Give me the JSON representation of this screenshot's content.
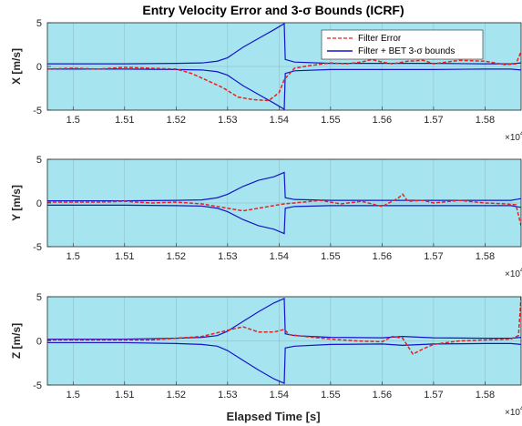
{
  "title": "Entry Velocity Error and 3-σ Bounds (ICRF)",
  "xlabel": "Elapsed Time [s]",
  "x_multiplier_base": "×10",
  "x_multiplier_exp": "4",
  "colors": {
    "background": "#a6e5f0",
    "error": "#e8201e",
    "bounds": "#1414c8",
    "grid": "#7a9aa2"
  },
  "legend": {
    "entries": [
      "Filter Error",
      "Filter + BET 3-σ bounds"
    ],
    "location": "top-right",
    "panel": 0
  },
  "chart_data": [
    {
      "type": "line",
      "ylabel": "X [m/s]",
      "xlim": [
        14950,
        15870
      ],
      "ylim": [
        -5,
        5
      ],
      "xticks": [
        15000,
        15100,
        15200,
        15300,
        15400,
        15500,
        15600,
        15700,
        15800
      ],
      "xtick_labels": [
        "1.5",
        "1.51",
        "1.52",
        "1.53",
        "1.54",
        "1.55",
        "1.56",
        "1.57",
        "1.58"
      ],
      "yticks": [
        -5,
        0,
        5
      ],
      "ytick_labels": [
        "-5",
        "0",
        "5"
      ],
      "grid": true,
      "series": [
        {
          "name": "Filter + BET 3-σ bounds",
          "style": "solid",
          "x": [
            14950,
            15100,
            15200,
            15250,
            15280,
            15300,
            15330,
            15360,
            15390,
            15410,
            15412,
            15430,
            15500,
            15600,
            15700,
            15800,
            15850,
            15870
          ],
          "y": [
            0.3,
            0.3,
            0.35,
            0.4,
            0.6,
            1.0,
            2.2,
            3.2,
            4.2,
            4.9,
            0.8,
            0.5,
            0.35,
            0.35,
            0.35,
            0.3,
            0.3,
            0.4
          ]
        },
        {
          "name": "",
          "style": "solid",
          "x": [
            14950,
            15100,
            15200,
            15250,
            15280,
            15300,
            15330,
            15360,
            15390,
            15410,
            15412,
            15430,
            15500,
            15600,
            15700,
            15800,
            15850,
            15870
          ],
          "y": [
            -0.3,
            -0.3,
            -0.35,
            -0.4,
            -0.6,
            -1.0,
            -2.2,
            -3.2,
            -4.2,
            -4.9,
            -0.8,
            -0.5,
            -0.35,
            -0.35,
            -0.35,
            -0.3,
            -0.3,
            -0.4
          ]
        },
        {
          "name": "Filter Error",
          "style": "dashed",
          "x": [
            14950,
            15000,
            15050,
            15100,
            15150,
            15200,
            15230,
            15260,
            15290,
            15320,
            15350,
            15380,
            15400,
            15410,
            15430,
            15460,
            15500,
            15530,
            15560,
            15580,
            15600,
            15620,
            15650,
            15680,
            15700,
            15750,
            15800,
            15840,
            15860,
            15870
          ],
          "y": [
            -0.3,
            -0.2,
            -0.3,
            -0.1,
            -0.2,
            -0.3,
            -0.8,
            -1.6,
            -2.4,
            -3.5,
            -3.8,
            -3.9,
            -3.0,
            -1.5,
            -0.2,
            0.1,
            0.4,
            0.3,
            0.5,
            0.8,
            0.5,
            0.3,
            0.6,
            0.7,
            0.3,
            0.7,
            0.6,
            0.2,
            0.3,
            1.7
          ]
        }
      ]
    },
    {
      "type": "line",
      "ylabel": "Y [m/s]",
      "xlim": [
        14950,
        15870
      ],
      "ylim": [
        -5,
        5
      ],
      "xticks": [
        15000,
        15100,
        15200,
        15300,
        15400,
        15500,
        15600,
        15700,
        15800
      ],
      "xtick_labels": [
        "1.5",
        "1.51",
        "1.52",
        "1.53",
        "1.54",
        "1.55",
        "1.56",
        "1.57",
        "1.58"
      ],
      "yticks": [
        -5,
        0,
        5
      ],
      "ytick_labels": [
        "-5",
        "0",
        "5"
      ],
      "grid": true,
      "series": [
        {
          "name": "Filter + BET 3-σ bounds",
          "style": "solid",
          "x": [
            14950,
            15100,
            15200,
            15250,
            15280,
            15300,
            15330,
            15360,
            15390,
            15410,
            15412,
            15430,
            15500,
            15600,
            15700,
            15800,
            15850,
            15870
          ],
          "y": [
            0.25,
            0.25,
            0.3,
            0.35,
            0.6,
            1.0,
            1.9,
            2.6,
            3.0,
            3.5,
            0.6,
            0.4,
            0.3,
            0.3,
            0.3,
            0.3,
            0.3,
            0.5
          ]
        },
        {
          "name": "",
          "style": "solid",
          "x": [
            14950,
            15100,
            15200,
            15250,
            15280,
            15300,
            15330,
            15360,
            15390,
            15410,
            15412,
            15430,
            15500,
            15600,
            15700,
            15800,
            15850,
            15870
          ],
          "y": [
            -0.25,
            -0.25,
            -0.3,
            -0.35,
            -0.6,
            -1.0,
            -1.9,
            -2.6,
            -3.0,
            -3.5,
            -0.6,
            -0.4,
            -0.3,
            -0.3,
            -0.3,
            -0.3,
            -0.3,
            -0.5
          ]
        },
        {
          "name": "Filter Error",
          "style": "dashed",
          "x": [
            14950,
            15050,
            15100,
            15150,
            15200,
            15250,
            15300,
            15330,
            15360,
            15390,
            15410,
            15430,
            15480,
            15520,
            15560,
            15600,
            15630,
            15640,
            15650,
            15680,
            15700,
            15750,
            15800,
            15840,
            15860,
            15870
          ],
          "y": [
            0.1,
            0.1,
            0.2,
            0.0,
            0.1,
            -0.1,
            -0.6,
            -0.9,
            -0.6,
            -0.3,
            -0.1,
            0.0,
            0.3,
            -0.1,
            0.2,
            -0.4,
            0.5,
            1.0,
            0.2,
            0.3,
            0.0,
            0.3,
            0.0,
            -0.1,
            -0.2,
            -2.6
          ]
        }
      ]
    },
    {
      "type": "line",
      "ylabel": "Z [m/s]",
      "xlim": [
        14950,
        15870
      ],
      "ylim": [
        -5,
        5
      ],
      "xticks": [
        15000,
        15100,
        15200,
        15300,
        15400,
        15500,
        15600,
        15700,
        15800
      ],
      "xtick_labels": [
        "1.5",
        "1.51",
        "1.52",
        "1.53",
        "1.54",
        "1.55",
        "1.56",
        "1.57",
        "1.58"
      ],
      "yticks": [
        -5,
        0,
        5
      ],
      "ytick_labels": [
        "-5",
        "0",
        "5"
      ],
      "grid": true,
      "series": [
        {
          "name": "Filter + BET 3-σ bounds",
          "style": "solid",
          "x": [
            14950,
            15100,
            15200,
            15250,
            15280,
            15300,
            15330,
            15360,
            15390,
            15410,
            15412,
            15430,
            15500,
            15600,
            15640,
            15660,
            15700,
            15800,
            15850,
            15870
          ],
          "y": [
            0.2,
            0.2,
            0.3,
            0.4,
            0.6,
            1.1,
            2.2,
            3.3,
            4.3,
            4.8,
            0.8,
            0.6,
            0.4,
            0.35,
            0.5,
            0.45,
            0.35,
            0.3,
            0.3,
            0.4
          ]
        },
        {
          "name": "",
          "style": "solid",
          "x": [
            14950,
            15100,
            15200,
            15250,
            15280,
            15300,
            15330,
            15360,
            15390,
            15410,
            15412,
            15430,
            15500,
            15600,
            15640,
            15660,
            15700,
            15800,
            15850,
            15870
          ],
          "y": [
            -0.2,
            -0.2,
            -0.3,
            -0.4,
            -0.6,
            -1.1,
            -2.2,
            -3.3,
            -4.3,
            -4.8,
            -0.8,
            -0.6,
            -0.4,
            -0.35,
            -0.5,
            -0.45,
            -0.35,
            -0.3,
            -0.3,
            -0.4
          ]
        },
        {
          "name": "Filter Error",
          "style": "dashed",
          "x": [
            14950,
            15050,
            15150,
            15250,
            15300,
            15330,
            15360,
            15390,
            15410,
            15420,
            15450,
            15500,
            15550,
            15600,
            15620,
            15640,
            15660,
            15680,
            15700,
            15750,
            15800,
            15850,
            15865,
            15870
          ],
          "y": [
            0.1,
            0.1,
            0.1,
            0.5,
            1.2,
            1.6,
            1.0,
            1.0,
            1.3,
            0.7,
            0.5,
            0.2,
            0.0,
            -0.1,
            0.5,
            0.3,
            -1.5,
            -0.9,
            -0.4,
            0.0,
            0.1,
            0.2,
            0.6,
            5.0
          ]
        }
      ]
    }
  ]
}
